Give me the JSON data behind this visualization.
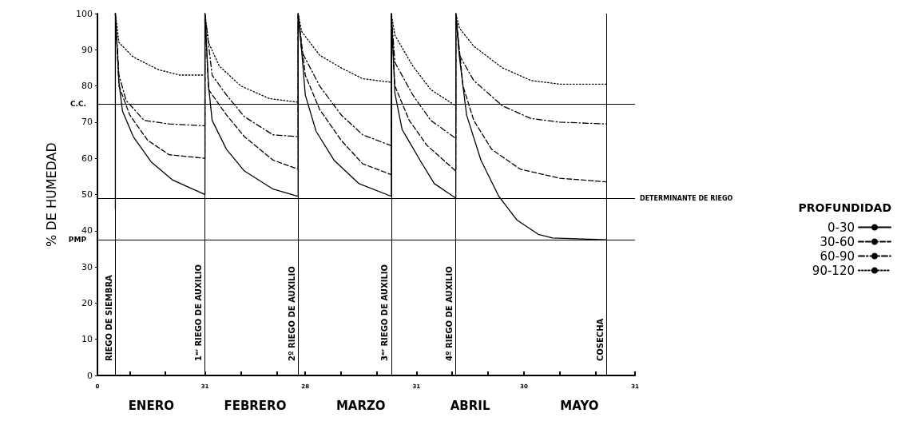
{
  "chart_data": {
    "type": "line",
    "ylabel": "% DE HUMEDAD",
    "legend_title": "PROFUNDIDAD",
    "legend": "right",
    "marker": "none",
    "grid": false,
    "xlim": [
      "--01-01",
      "--05-31"
    ],
    "xticks": [
      {
        "value": "--01-01",
        "label": "0"
      },
      {
        "value": "--01-10",
        "label": null
      },
      {
        "value": "--01-20",
        "label": null
      },
      {
        "value": "--01-31",
        "label": "31"
      },
      {
        "value": "--02-10",
        "label": null
      },
      {
        "value": "--02-20",
        "label": null
      },
      {
        "value": "--02-28",
        "label": "28"
      },
      {
        "value": "--03-10",
        "label": null
      },
      {
        "value": "--03-20",
        "label": null
      },
      {
        "value": "--03-31",
        "label": "31"
      },
      {
        "value": "--04-10",
        "label": null
      },
      {
        "value": "--04-20",
        "label": null
      },
      {
        "value": "--04-30",
        "label": "30"
      },
      {
        "value": "--05-10",
        "label": null
      },
      {
        "value": "--05-20",
        "label": null
      },
      {
        "value": "--05-31",
        "label": "31"
      }
    ],
    "ylim": [
      0,
      100
    ],
    "yticks": [
      0,
      10,
      20,
      30,
      40,
      50,
      60,
      70,
      80,
      90,
      100
    ],
    "series": [
      {
        "name": "0-30",
        "color": "#000000",
        "line_style": "solid",
        "x": [
          "--01-06",
          "--01-06",
          "--01-07",
          "--01-08",
          "--01-11",
          "--01-16",
          "--01-22",
          "--01-31",
          "--01-31",
          "--02-01",
          "--02-02",
          "--02-06",
          "--02-11",
          "--02-19",
          "--02-26",
          "--02-26",
          "--02-27",
          "--02-28",
          "--03-03",
          "--03-08",
          "--03-15",
          "--03-24",
          "--03-24",
          "--03-25",
          "--03-27",
          "--04-01",
          "--04-05",
          "--04-11",
          "--04-11",
          "--04-12",
          "--04-14",
          "--04-18",
          "--04-23",
          "--04-28",
          "--05-04",
          "--05-08",
          "--05-23"
        ],
        "values": [
          46,
          100,
          81,
          73,
          66,
          59,
          54,
          50,
          100,
          80,
          70.5,
          62.5,
          56.5,
          51.5,
          49.5,
          100,
          89.5,
          77.5,
          67.5,
          59.5,
          53,
          49.5,
          100,
          78,
          68,
          59.5,
          53,
          49,
          100,
          88,
          72,
          59.5,
          49.5,
          43,
          39,
          38,
          37.5
        ]
      },
      {
        "name": "30-60",
        "color": "#000000",
        "line_style": "dashed",
        "x": [
          "--01-06",
          "--01-07",
          "--01-10",
          "--01-15",
          "--01-21",
          "--01-31",
          "--01-31",
          "--02-01",
          "--02-06",
          "--02-11",
          "--02-19",
          "--02-26",
          "--02-26",
          "--02-28",
          "--03-04",
          "--03-10",
          "--03-16",
          "--03-24",
          "--03-24",
          "--03-25",
          "--03-29",
          "--04-03",
          "--04-11",
          "--04-11",
          "--04-13",
          "--04-16",
          "--04-21",
          "--04-29",
          "--05-10",
          "--05-23"
        ],
        "values": [
          100,
          80,
          72,
          65,
          61,
          60,
          100,
          79,
          72,
          66,
          59.5,
          57,
          100,
          83,
          73.5,
          65,
          58.5,
          55.5,
          100,
          80,
          70.5,
          63.5,
          56.5,
          100,
          80,
          70.5,
          62.5,
          57,
          54.5,
          53.5
        ]
      },
      {
        "name": "60-90",
        "color": "#000000",
        "line_style": "dashdot",
        "x": [
          "--01-06",
          "--01-07",
          "--01-09",
          "--01-14",
          "--01-21",
          "--01-31",
          "--01-31",
          "--02-02",
          "--02-06",
          "--02-11",
          "--02-19",
          "--02-26",
          "--02-26",
          "--02-27",
          "--03-04",
          "--03-10",
          "--03-16",
          "--03-24",
          "--03-24",
          "--03-25",
          "--03-30",
          "--04-04",
          "--04-11",
          "--04-11",
          "--04-12",
          "--04-16",
          "--04-24",
          "--05-02",
          "--05-10",
          "--05-23"
        ],
        "values": [
          100,
          83,
          76,
          70.5,
          69.5,
          69,
          100,
          83,
          77.5,
          71.5,
          66.5,
          66,
          100,
          89.5,
          80,
          72,
          66.5,
          63.5,
          100,
          86.5,
          77.5,
          70.5,
          65.5,
          100,
          88.5,
          81.5,
          74.5,
          71,
          70,
          69.5
        ]
      },
      {
        "name": "90-120",
        "color": "#000000",
        "line_style": "dotted",
        "x": [
          "--01-06",
          "--01-07",
          "--01-11",
          "--01-18",
          "--01-24",
          "--01-31",
          "--01-31",
          "--02-01",
          "--02-04",
          "--02-10",
          "--02-18",
          "--02-26",
          "--02-26",
          "--02-27",
          "--03-04",
          "--03-10",
          "--03-16",
          "--03-24",
          "--03-24",
          "--03-25",
          "--03-30",
          "--04-04",
          "--04-11",
          "--04-11",
          "--04-12",
          "--04-16",
          "--04-24",
          "--05-02",
          "--05-10",
          "--05-23"
        ],
        "values": [
          100,
          92,
          88,
          84.5,
          83,
          83,
          100,
          92,
          85.5,
          80,
          76.5,
          75.5,
          100,
          95,
          88.5,
          85,
          82,
          81,
          100,
          94,
          85.5,
          79,
          74.5,
          100,
          96,
          91,
          85,
          81.5,
          80.5,
          80.5
        ]
      }
    ],
    "ref_lines": [
      {
        "axis": "y",
        "value": 75,
        "label": "C.C.",
        "color": "#000000"
      },
      {
        "axis": "y",
        "value": 49,
        "label": "DETERMINANTE DE RIEGO",
        "color": "#000000"
      },
      {
        "axis": "y",
        "value": 37.5,
        "label": "PMP",
        "color": "#000000"
      },
      {
        "axis": "x",
        "value": "--01-06",
        "label": "RIEGO DE SIEMBRA",
        "color": "#000000"
      },
      {
        "axis": "x",
        "value": "--01-31",
        "label": "1ᵉʳ RIEGO DE AUXILIO",
        "color": "#000000"
      },
      {
        "axis": "x",
        "value": "--02-26",
        "label": "2º RIEGO DE AUXILIO",
        "color": "#000000"
      },
      {
        "axis": "x",
        "value": "--03-24",
        "label": "3ᵉʳ RIEGO DE AUXILIO",
        "color": "#000000"
      },
      {
        "axis": "x",
        "value": "--04-11",
        "label": "4º RIEGO DE AUXILIO",
        "color": "#000000"
      },
      {
        "axis": "x",
        "value": "--05-23",
        "label": "COSECHA",
        "color": "#000000"
      }
    ],
    "annotations": [
      "ENERO",
      "FEBRERO",
      "MARZO",
      "ABRIL",
      "MAYO"
    ]
  }
}
